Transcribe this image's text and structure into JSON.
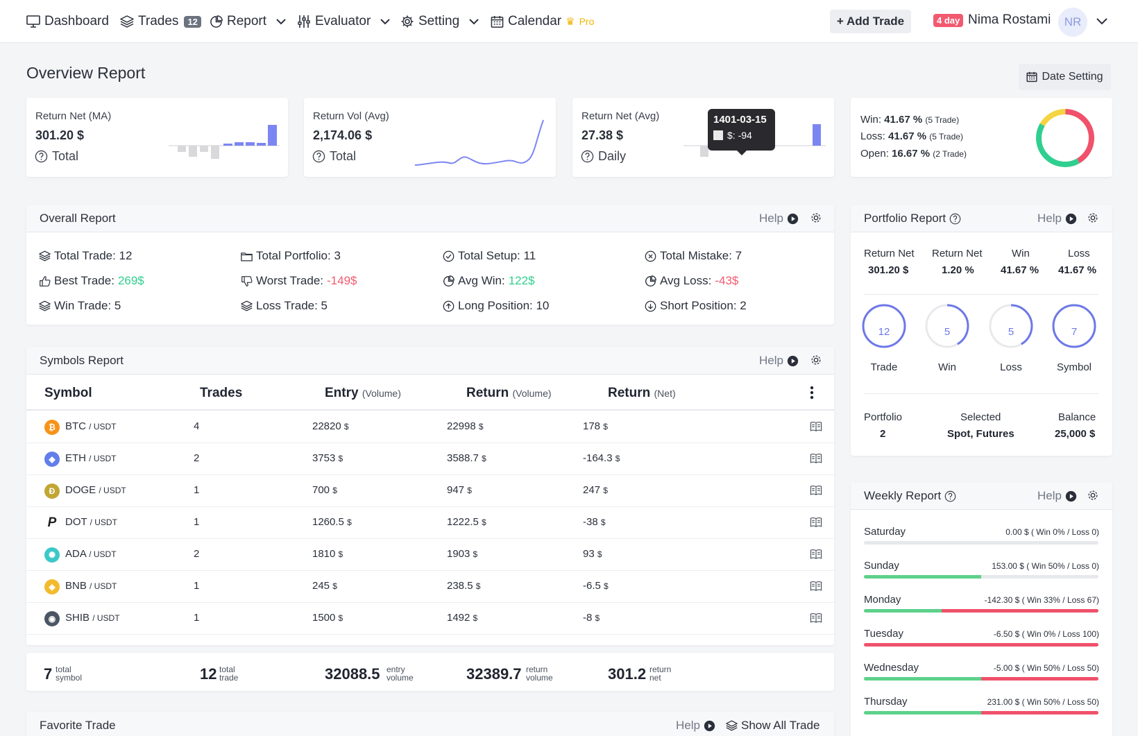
{
  "nav": {
    "dashboard": "Dashboard",
    "trades": "Trades",
    "trades_count": "12",
    "report": "Report",
    "evaluator": "Evaluator",
    "setting": "Setting",
    "calendar": "Calendar",
    "pro": "Pro",
    "add_trade": "+ Add Trade",
    "day_badge": "4 day",
    "user_name": "Nima Rostami",
    "avatar": "NR"
  },
  "page": {
    "title": "Overview Report",
    "date_setting": "Date Setting"
  },
  "stats": [
    {
      "label": "Return Net (MA)",
      "value": "301.20 $",
      "sub": "Total"
    },
    {
      "label": "Return Vol (Avg)",
      "value": "2,174.06 $",
      "sub": "Total"
    },
    {
      "label": "Return Net (Avg)",
      "value": "27.38 $",
      "sub": "Daily"
    }
  ],
  "tooltip": {
    "date": "1401-03-15",
    "value": "$: -94"
  },
  "winloss": {
    "win_label": "Win:",
    "win_pct": "41.67 %",
    "win_trades": "(5 Trade)",
    "loss_label": "Loss:",
    "loss_pct": "41.67 %",
    "loss_trades": "(5 Trade)",
    "open_label": "Open:",
    "open_pct": "16.67 %",
    "open_trades": "(2 Trade)",
    "donut": {
      "win": 41.67,
      "loss": 41.67,
      "open": 16.67,
      "colors": {
        "win": "#2fcf8f",
        "loss": "#f0516b",
        "open": "#f5d442"
      }
    }
  },
  "overall": {
    "title": "Overall Report",
    "help": "Help",
    "items": {
      "total_trade": "Total Trade: 12",
      "total_portfolio": "Total Portfolio: 3",
      "total_setup": "Total Setup: 11",
      "total_mistake": "Total Mistake: 7",
      "best_trade_label": "Best Trade:",
      "best_trade_value": "269$",
      "worst_trade_label": "Worst Trade:",
      "worst_trade_value": "-149$",
      "avg_win_label": "Avg Win:",
      "avg_win_value": "122$",
      "avg_loss_label": "Avg Loss:",
      "avg_loss_value": "-43$",
      "win_trade": "Win Trade: 5",
      "loss_trade": "Loss Trade: 5",
      "long_position": "Long Position: 10",
      "short_position": "Short Position: 2"
    }
  },
  "symbols": {
    "title": "Symbols Report",
    "help": "Help",
    "headers": {
      "symbol": "Symbol",
      "trades": "Trades",
      "entry": "Entry",
      "entry_sub": "(Volume)",
      "return_vol": "Return",
      "return_vol_sub": "(Volume)",
      "return_net": "Return",
      "return_net_sub": "(Net)"
    },
    "rows": [
      {
        "coin": "BTC",
        "pair": "/ USDT",
        "trades": "4",
        "entry": "22820",
        "ret_vol": "22998",
        "ret_net": "178",
        "win": true,
        "color": "#f7931a",
        "glyph": "₿"
      },
      {
        "coin": "ETH",
        "pair": "/ USDT",
        "trades": "2",
        "entry": "3753",
        "ret_vol": "3588.7",
        "ret_net": "-164.3",
        "win": false,
        "color": "#627eea",
        "glyph": "◆"
      },
      {
        "coin": "DOGE",
        "pair": "/ USDT",
        "trades": "1",
        "entry": "700",
        "ret_vol": "947",
        "ret_net": "247",
        "win": true,
        "color": "#c2a633",
        "glyph": "Ð"
      },
      {
        "coin": "DOT",
        "pair": "/ USDT",
        "trades": "1",
        "entry": "1260.5",
        "ret_vol": "1222.5",
        "ret_net": "-38",
        "win": false,
        "color": "#ffffff",
        "glyph": "P"
      },
      {
        "coin": "ADA",
        "pair": "/ USDT",
        "trades": "2",
        "entry": "1810",
        "ret_vol": "1903",
        "ret_net": "93",
        "win": true,
        "color": "#3cc8c8",
        "glyph": "✺"
      },
      {
        "coin": "BNB",
        "pair": "/ USDT",
        "trades": "1",
        "entry": "245",
        "ret_vol": "238.5",
        "ret_net": "-6.5",
        "win": false,
        "color": "#f3ba2f",
        "glyph": "◈"
      },
      {
        "coin": "SHIB",
        "pair": "/ USDT",
        "trades": "1",
        "entry": "1500",
        "ret_vol": "1492",
        "ret_net": "-8",
        "win": false,
        "color": "#4b5563",
        "glyph": "◉"
      }
    ],
    "unit": "$",
    "totals": {
      "symbols": "7",
      "symbols_lbl1": "total",
      "symbols_lbl2": "symbol",
      "trades": "12",
      "trades_lbl1": "total",
      "trades_lbl2": "trade",
      "entry": "32088.5",
      "entry_lbl1": "entry",
      "entry_lbl2": "volume",
      "ret_vol": "32389.7",
      "ret_vol_lbl1": "return",
      "ret_vol_lbl2": "volume",
      "ret_net": "301.2",
      "ret_net_lbl1": "return",
      "ret_net_lbl2": "net"
    }
  },
  "favorite": {
    "title": "Favorite Trade",
    "help": "Help",
    "show_all": "Show All Trade"
  },
  "portfolio": {
    "title": "Portfolio Report",
    "help": "Help",
    "metrics": [
      {
        "label": "Return Net",
        "value": "301.20 $"
      },
      {
        "label": "Return Net",
        "value": "1.20 %"
      },
      {
        "label": "Win",
        "value": "41.67 %"
      },
      {
        "label": "Loss",
        "value": "41.67 %"
      }
    ],
    "rings": [
      {
        "num": "12",
        "label": "Trade",
        "fill": 1.0
      },
      {
        "num": "5",
        "label": "Win",
        "fill": 0.4167
      },
      {
        "num": "5",
        "label": "Loss",
        "fill": 0.4167
      },
      {
        "num": "7",
        "label": "Symbol",
        "fill": 1.0
      }
    ],
    "footer": [
      {
        "label": "Portfolio",
        "value": "2"
      },
      {
        "label": "Selected",
        "value": "Spot, Futures"
      },
      {
        "label": "Balance",
        "value": "25,000 $"
      }
    ]
  },
  "weekly": {
    "title": "Weekly Report",
    "help": "Help",
    "days": [
      {
        "day": "Saturday",
        "text": "0.00 $ ( Win 0% / Loss 0)",
        "win": 0,
        "loss": 0
      },
      {
        "day": "Sunday",
        "text": "153.00 $ ( Win 50% / Loss 0)",
        "win": 50,
        "loss": 0
      },
      {
        "day": "Monday",
        "text": "-142.30 $ ( Win 33% / Loss 67)",
        "win": 33,
        "loss": 67
      },
      {
        "day": "Tuesday",
        "text": "-6.50 $ ( Win 0% / Loss 100)",
        "win": 0,
        "loss": 100
      },
      {
        "day": "Wednesday",
        "text": "-5.00 $ ( Win 50% / Loss 50)",
        "win": 50,
        "loss": 50
      },
      {
        "day": "Thursday",
        "text": "231.00 $ ( Win 50% / Loss 50)",
        "win": 50,
        "loss": 50
      }
    ]
  }
}
